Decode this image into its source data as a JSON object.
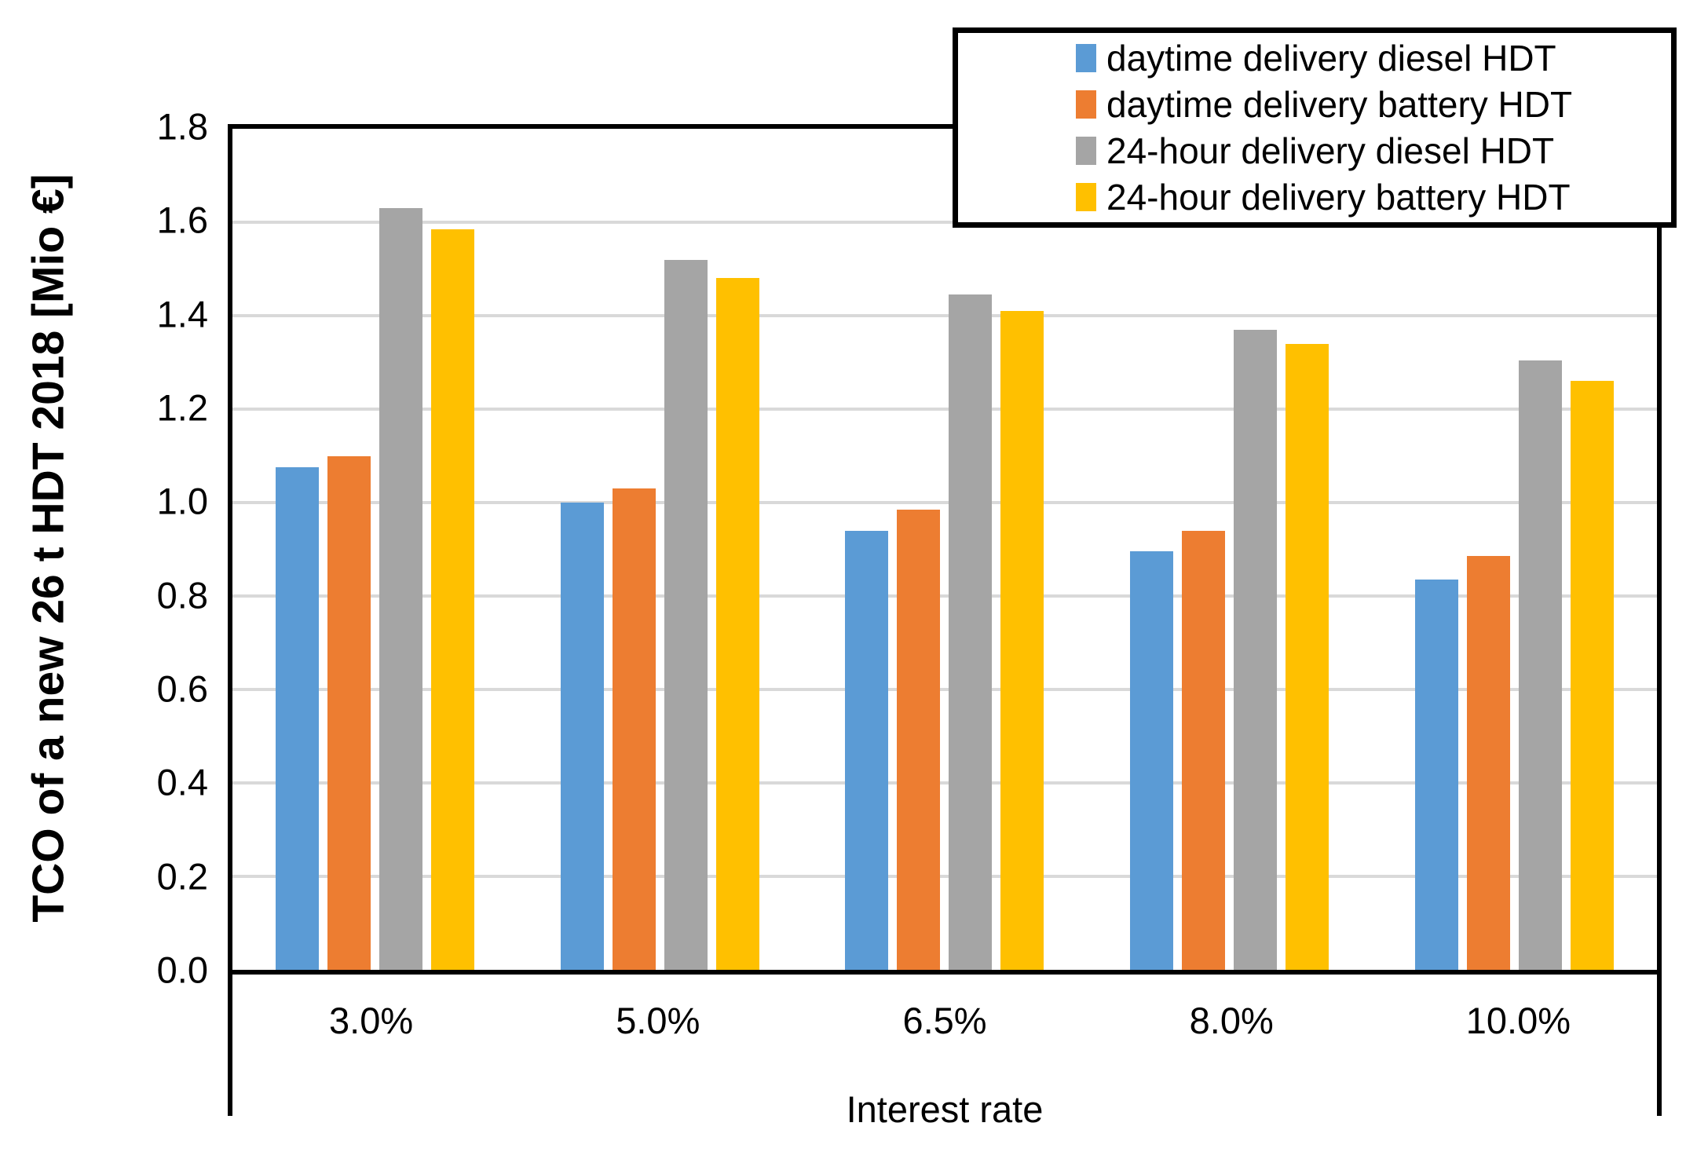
{
  "chart_data": {
    "type": "bar",
    "title": "",
    "ylabel": "TCO of a new 26 t HDT 2018 [Mio €]",
    "xlabel": "Interest rate",
    "categories": [
      "3.0%",
      "5.0%",
      "6.5%",
      "8.0%",
      "10.0%"
    ],
    "series": [
      {
        "name": "daytime delivery diesel HDT",
        "color": "#5B9BD5",
        "values": [
          1.075,
          1.0,
          0.94,
          0.895,
          0.835
        ]
      },
      {
        "name": "daytime delivery battery HDT",
        "color": "#ED7D31",
        "values": [
          1.1,
          1.03,
          0.985,
          0.94,
          0.885
        ]
      },
      {
        "name": "24-hour delivery diesel HDT",
        "color": "#A5A5A5",
        "values": [
          1.63,
          1.52,
          1.445,
          1.37,
          1.305
        ]
      },
      {
        "name": "24-hour delivery battery HDT",
        "color": "#FFC000",
        "values": [
          1.585,
          1.48,
          1.41,
          1.34,
          1.26
        ]
      }
    ],
    "ylim": [
      0.0,
      1.8
    ],
    "ytick_step": 0.2,
    "ytick_labels": [
      "0.0",
      "0.2",
      "0.4",
      "0.6",
      "0.8",
      "1.0",
      "1.2",
      "1.4",
      "1.6",
      "1.8"
    ],
    "grid": true,
    "gridline_color": "#D9D9D9",
    "axis_color": "#000000",
    "background_color": "#FFFFFF",
    "legend_position": "top-right"
  }
}
